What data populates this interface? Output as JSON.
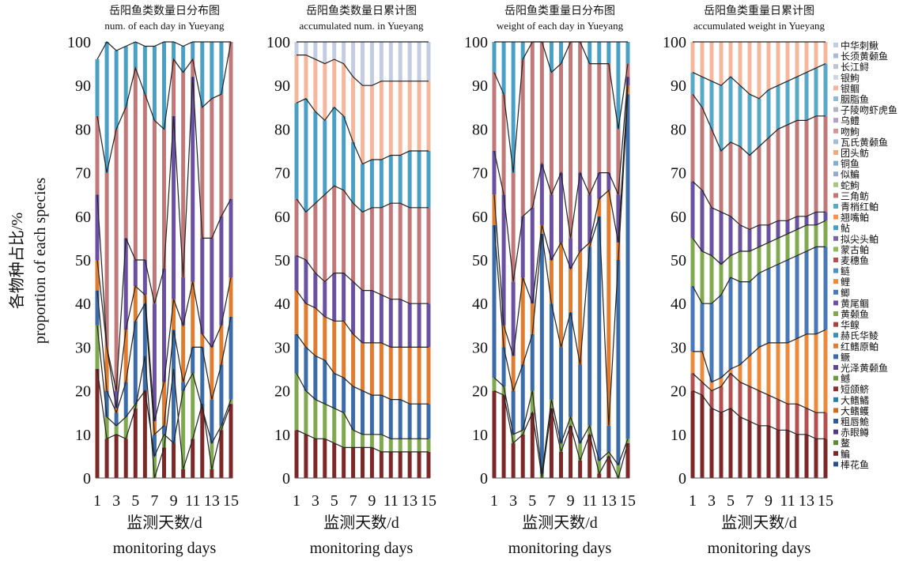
{
  "y_axis_label_cn": "各物种占比/%",
  "y_axis_label_en": "proportion of each species",
  "x_axis_label_cn": "监测天数/d",
  "x_axis_label_en": "monitoring days",
  "panels": [
    {
      "title_cn": "岳阳鱼类数量日分布图",
      "title_en": "num. of each day in Yueyang"
    },
    {
      "title_cn": "岳阳鱼类数量日累计图",
      "title_en": "accumulated num. in Yueyang"
    },
    {
      "title_cn": "岳阳鱼类重量日分布图",
      "title_en": "weight of each day in Yueyang"
    },
    {
      "title_cn": "岳阳鱼类重量日累计图",
      "title_en": "accumulated weight in Yueyang"
    }
  ],
  "legend": [
    {
      "name": "中华刺鳅",
      "color": "#c3cce0"
    },
    {
      "name": "长须黄颡鱼",
      "color": "#a8bcd8"
    },
    {
      "name": "长江鲟",
      "color": "#bcc4d4"
    },
    {
      "name": "银鮈",
      "color": "#ccd6e6"
    },
    {
      "name": "银鲴",
      "color": "#f4b79c"
    },
    {
      "name": "胭脂鱼",
      "color": "#90b8d8"
    },
    {
      "name": "子陵吻虾虎鱼",
      "color": "#b0b4c4"
    },
    {
      "name": "乌鳢",
      "color": "#b4a0c4"
    },
    {
      "name": "吻鮈",
      "color": "#d89494"
    },
    {
      "name": "瓦氏黄颡鱼",
      "color": "#a4bcd4"
    },
    {
      "name": "团头鲂",
      "color": "#f4a880"
    },
    {
      "name": "铜鱼",
      "color": "#80b0d0"
    },
    {
      "name": "似鳊",
      "color": "#98a8d0"
    },
    {
      "name": "蛇鮈",
      "color": "#a8c480"
    },
    {
      "name": "三角鲂",
      "color": "#c07878"
    },
    {
      "name": "青梢红鲌",
      "color": "#58a8c8"
    },
    {
      "name": "翘嘴鲌",
      "color": "#f49450"
    },
    {
      "name": "鲇",
      "color": "#4aa0c4"
    },
    {
      "name": "拟尖头鲌",
      "color": "#7a64a8"
    },
    {
      "name": "蒙古鲌",
      "color": "#90b860"
    },
    {
      "name": "麦穗鱼",
      "color": "#b45050"
    },
    {
      "name": "鲢",
      "color": "#4a90c4"
    },
    {
      "name": "鲤",
      "color": "#ec8a3c"
    },
    {
      "name": "鲫",
      "color": "#4878b8"
    },
    {
      "name": "黄尾鲴",
      "color": "#6a50a0"
    },
    {
      "name": "黄颡鱼",
      "color": "#80a850"
    },
    {
      "name": "华鳈",
      "color": "#a04444"
    },
    {
      "name": "赫氏华鲮",
      "color": "#3890b8"
    },
    {
      "name": "红鳍原鲌",
      "color": "#e07c30"
    },
    {
      "name": "鳜",
      "color": "#3c6ca8"
    },
    {
      "name": "光泽黄颡鱼",
      "color": "#5c4890"
    },
    {
      "name": "鳡",
      "color": "#6c9a40"
    },
    {
      "name": "短颌鲚",
      "color": "#8c3030"
    },
    {
      "name": "大鳍鱊",
      "color": "#2c7eaa"
    },
    {
      "name": "大鳍鳠",
      "color": "#d06c20"
    },
    {
      "name": "粗唇鮠",
      "color": "#2c5c98"
    },
    {
      "name": "赤眼鳟",
      "color": "#4c3c80"
    },
    {
      "name": "鳌",
      "color": "#5c8c30"
    },
    {
      "name": "鳊",
      "color": "#7c2828"
    },
    {
      "name": "棒花鱼",
      "color": "#2c5088"
    }
  ],
  "chart_data": [
    {
      "type": "area",
      "title": "岳阳鱼类数量日分布图 num. of each day in Yueyang",
      "x": [
        1,
        2,
        3,
        4,
        5,
        6,
        7,
        8,
        9,
        10,
        11,
        12,
        13,
        14,
        15
      ],
      "x_ticks": [
        1,
        3,
        5,
        7,
        9,
        11,
        13,
        15
      ],
      "ylim": [
        0,
        100
      ],
      "y_ticks": [
        0,
        10,
        20,
        30,
        40,
        50,
        60,
        70,
        80,
        90,
        100
      ],
      "series_boundaries": [
        [
          25,
          9,
          10,
          9,
          16,
          28,
          0,
          7,
          25,
          2,
          9,
          17,
          2,
          11,
          17
        ],
        [
          35,
          14,
          12,
          14,
          17,
          20,
          5,
          10,
          8,
          20,
          24,
          16,
          8,
          12,
          18
        ],
        [
          43,
          20,
          15,
          22,
          36,
          40,
          10,
          12,
          34,
          22,
          30,
          30,
          18,
          26,
          37
        ],
        [
          50,
          30,
          16,
          34,
          44,
          42,
          13,
          22,
          41,
          35,
          45,
          33,
          30,
          35,
          46
        ],
        [
          65,
          30,
          20,
          55,
          50,
          50,
          40,
          48,
          83,
          46,
          92,
          55,
          55,
          60,
          64
        ],
        [
          83,
          70,
          80,
          85,
          94,
          88,
          82,
          80,
          96,
          93,
          96,
          85,
          87,
          88,
          100
        ],
        [
          96,
          100,
          98,
          99,
          100,
          99,
          99,
          100,
          100,
          99,
          100,
          100,
          100,
          100,
          100
        ]
      ]
    },
    {
      "type": "area",
      "title": "岳阳鱼类数量日累计图 accumulated num. in Yueyang",
      "x": [
        1,
        2,
        3,
        4,
        5,
        6,
        7,
        8,
        9,
        10,
        11,
        12,
        13,
        14,
        15
      ],
      "x_ticks": [
        1,
        3,
        5,
        7,
        9,
        11,
        13,
        15
      ],
      "ylim": [
        0,
        100
      ],
      "y_ticks": [
        0,
        10,
        20,
        30,
        40,
        50,
        60,
        70,
        80,
        90,
        100
      ],
      "series_boundaries": [
        [
          11,
          10,
          9,
          9,
          8,
          7,
          7,
          7,
          7,
          6,
          6,
          6,
          6,
          6,
          6
        ],
        [
          24,
          20,
          18,
          17,
          16,
          15,
          11,
          10,
          10,
          10,
          9,
          9,
          9,
          9,
          9
        ],
        [
          33,
          30,
          28,
          27,
          24,
          23,
          21,
          20,
          19,
          19,
          18,
          18,
          17,
          17,
          17
        ],
        [
          43,
          40,
          39,
          37,
          36,
          36,
          33,
          31,
          31,
          31,
          30,
          30,
          30,
          30,
          30
        ],
        [
          51,
          50,
          47,
          45,
          47,
          47,
          45,
          43,
          43,
          42,
          41,
          41,
          40,
          40,
          40
        ],
        [
          64,
          61,
          63,
          65,
          67,
          66,
          63,
          61,
          62,
          62,
          63,
          63,
          62,
          62,
          62
        ],
        [
          86,
          87,
          84,
          82,
          85,
          83,
          77,
          72,
          73,
          73,
          74,
          74,
          75,
          75,
          75
        ],
        [
          97,
          97,
          96,
          95,
          96,
          95,
          92,
          90,
          90,
          91,
          91,
          91,
          91,
          91,
          91
        ],
        [
          100,
          100,
          100,
          100,
          100,
          100,
          100,
          100,
          100,
          100,
          100,
          100,
          100,
          100,
          100
        ]
      ]
    },
    {
      "type": "area",
      "title": "岳阳鱼类重量日分布图 weight of each day in Yueyang",
      "x": [
        1,
        2,
        3,
        4,
        5,
        6,
        7,
        8,
        9,
        10,
        11,
        12,
        13,
        14,
        15
      ],
      "x_ticks": [
        1,
        3,
        5,
        7,
        9,
        11,
        13,
        15
      ],
      "ylim": [
        0,
        100
      ],
      "y_ticks": [
        0,
        10,
        20,
        30,
        40,
        50,
        60,
        70,
        80,
        90,
        100
      ],
      "series_boundaries": [
        [
          20,
          19,
          8,
          10,
          15,
          0,
          16,
          6,
          12,
          4,
          10,
          1,
          5,
          0,
          8
        ],
        [
          23,
          21,
          10,
          11,
          20,
          1,
          18,
          8,
          14,
          8,
          12,
          4,
          6,
          3,
          9
        ],
        [
          58,
          30,
          20,
          26,
          33,
          56,
          40,
          30,
          38,
          26,
          53,
          60,
          12,
          50,
          88
        ],
        [
          65,
          35,
          28,
          46,
          40,
          58,
          50,
          54,
          48,
          52,
          54,
          64,
          66,
          54,
          90
        ],
        [
          75,
          65,
          45,
          60,
          62,
          72,
          65,
          70,
          55,
          70,
          65,
          70,
          70,
          65,
          92
        ],
        [
          93,
          88,
          70,
          96,
          100,
          100,
          93,
          95,
          100,
          100,
          95,
          95,
          95,
          80,
          95
        ],
        [
          100,
          100,
          100,
          100,
          100,
          100,
          100,
          100,
          100,
          100,
          100,
          100,
          100,
          100,
          100
        ]
      ]
    },
    {
      "type": "area",
      "title": "岳阳鱼类重量日累计图 accumulated weight in Yueyang",
      "x": [
        1,
        2,
        3,
        4,
        5,
        6,
        7,
        8,
        9,
        10,
        11,
        12,
        13,
        14,
        15
      ],
      "x_ticks": [
        1,
        3,
        5,
        7,
        9,
        11,
        13,
        15
      ],
      "ylim": [
        0,
        100
      ],
      "y_ticks": [
        0,
        10,
        20,
        30,
        40,
        50,
        60,
        70,
        80,
        90,
        100
      ],
      "series_boundaries": [
        [
          20,
          19,
          16,
          15,
          16,
          14,
          13,
          12,
          12,
          11,
          11,
          10,
          10,
          9,
          9
        ],
        [
          24,
          22,
          20,
          21,
          24,
          22,
          21,
          20,
          19,
          18,
          17,
          17,
          16,
          15,
          15
        ],
        [
          29,
          29,
          22,
          23,
          25,
          26,
          28,
          30,
          31,
          31,
          31,
          32,
          33,
          33,
          34
        ],
        [
          44,
          40,
          40,
          42,
          46,
          45,
          45,
          47,
          48,
          49,
          50,
          51,
          52,
          53,
          53
        ],
        [
          55,
          52,
          51,
          49,
          51,
          52,
          52,
          53,
          54,
          55,
          56,
          57,
          58,
          58,
          59
        ],
        [
          68,
          66,
          62,
          61,
          60,
          58,
          57,
          58,
          58,
          59,
          59,
          60,
          60,
          61,
          61
        ],
        [
          88,
          85,
          80,
          75,
          77,
          76,
          74,
          76,
          78,
          80,
          81,
          82,
          82,
          83,
          83
        ],
        [
          93,
          92,
          91,
          90,
          92,
          90,
          88,
          87,
          89,
          90,
          91,
          92,
          93,
          94,
          95
        ],
        [
          100,
          100,
          100,
          100,
          100,
          100,
          100,
          100,
          100,
          100,
          100,
          100,
          100,
          100,
          100
        ]
      ]
    }
  ]
}
